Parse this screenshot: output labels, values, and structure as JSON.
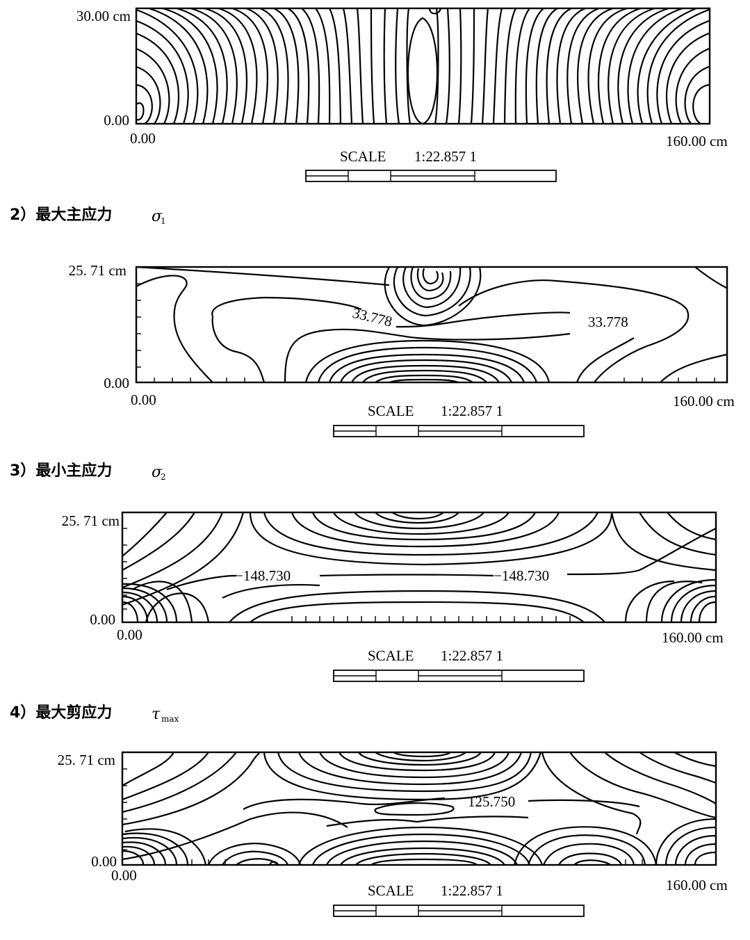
{
  "panels": [
    {
      "id": "p1",
      "heading": null,
      "y_top_label": "30.00 cm",
      "y_bottom_label": "0.00",
      "x_left_label": "0.00",
      "x_right_label": "160.00 cm",
      "scale_label": "SCALE",
      "scale_ratio": "1:22.857 1",
      "contour_labels": []
    },
    {
      "id": "p2",
      "heading": {
        "prefix": "2）",
        "text": "最大主应力",
        "symbol": "σ",
        "sub": "1"
      },
      "y_top_label": "25. 71 cm",
      "y_bottom_label": "0.00",
      "x_left_label": "0.00",
      "x_right_label": "160.00 cm",
      "scale_label": "SCALE",
      "scale_ratio": "1:22.857 1",
      "contour_labels": [
        "33.778",
        "33.778"
      ]
    },
    {
      "id": "p3",
      "heading": {
        "prefix": "3）",
        "text": "最小主应力",
        "symbol": "σ",
        "sub": "2"
      },
      "y_top_label": "25. 71 cm",
      "y_bottom_label": "0.00",
      "x_left_label": "0.00",
      "x_right_label": "160.00 cm",
      "scale_label": "SCALE",
      "scale_ratio": "1:22.857 1",
      "contour_labels": [
        "−148.730",
        "−148.730"
      ]
    },
    {
      "id": "p4",
      "heading": {
        "prefix": "4）",
        "text": "最大剪应力",
        "symbol": "τ",
        "sub": "max"
      },
      "y_top_label": "25. 71 cm",
      "y_bottom_label": "0.00",
      "x_left_label": "0.00",
      "x_right_label": "160.00 cm",
      "scale_label": "SCALE",
      "scale_ratio": "1:22.857 1",
      "contour_labels": [
        "125.750"
      ]
    }
  ]
}
